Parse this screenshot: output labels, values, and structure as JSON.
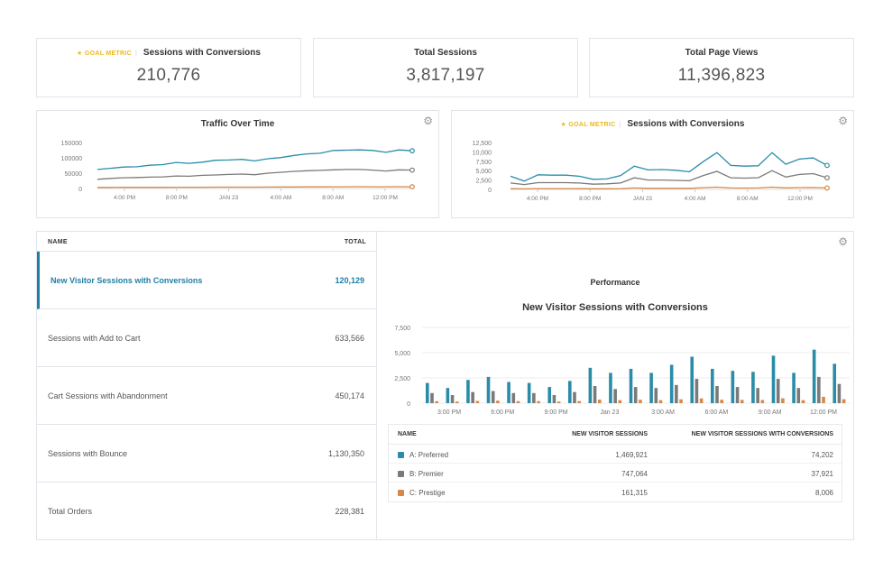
{
  "colors": {
    "teal": "#2a8ca8",
    "gray": "#7a7a7a",
    "orange": "#d4894a",
    "accent": "#1f7fa4",
    "goal": "#e8b923"
  },
  "metrics": [
    {
      "goal": "GOAL METRIC",
      "title": "Sessions with Conversions",
      "value": "210,776"
    },
    {
      "title": "Total Sessions",
      "value": "3,817,197"
    },
    {
      "title": "Total Page Views",
      "value": "11,396,823"
    }
  ],
  "traffic_chart": {
    "title": "Traffic Over Time",
    "chart_data": {
      "type": "line",
      "y_ticks": [
        "150000",
        "100000",
        "50000",
        "0"
      ],
      "ylim": [
        0,
        150000
      ],
      "x_ticks": [
        "4:00 PM",
        "8:00 PM",
        "JAN 23",
        "4:00 AM",
        "8:00 AM",
        "12:00 PM"
      ],
      "series": [
        {
          "name": "teal",
          "values": [
            62000,
            66000,
            70000,
            71000,
            76000,
            78000,
            85000,
            82000,
            86000,
            92000,
            93000,
            95000,
            90000,
            97000,
            101000,
            108000,
            113000,
            115000,
            124000,
            125000,
            126000,
            124000,
            118000,
            126000,
            123000
          ]
        },
        {
          "name": "gray",
          "values": [
            30000,
            33000,
            35000,
            36000,
            37000,
            38000,
            41000,
            40000,
            43000,
            44000,
            46000,
            47000,
            45000,
            50000,
            53000,
            56000,
            58000,
            59000,
            61000,
            62000,
            62000,
            60000,
            57000,
            61000,
            60000
          ]
        },
        {
          "name": "orange",
          "values": [
            3500,
            3600,
            3700,
            3700,
            3800,
            3900,
            4100,
            4000,
            4200,
            4300,
            4400,
            4500,
            4400,
            4700,
            4900,
            5100,
            5300,
            5400,
            5600,
            5700,
            5800,
            5700,
            5500,
            5800,
            5700
          ]
        }
      ]
    }
  },
  "conversions_chart": {
    "goal": "GOAL METRIC",
    "title": "Sessions with Conversions",
    "chart_data": {
      "type": "line",
      "y_ticks": [
        "12,500",
        "10,000",
        "7,500",
        "5,000",
        "2,500",
        "0"
      ],
      "ylim": [
        0,
        12500
      ],
      "x_ticks": [
        "4:00 PM",
        "8:00 PM",
        "JAN 23",
        "4:00 AM",
        "8:00 AM",
        "12:00 PM"
      ],
      "series": [
        {
          "name": "teal",
          "values": [
            3500,
            2200,
            3900,
            3800,
            3800,
            3500,
            2700,
            2800,
            3700,
            6200,
            5200,
            5300,
            5100,
            4700,
            7400,
            9800,
            6400,
            6200,
            6300,
            9800,
            6700,
            8100,
            8400,
            6400
          ]
        },
        {
          "name": "gray",
          "values": [
            1700,
            1300,
            1800,
            1800,
            1800,
            1700,
            1400,
            1500,
            1700,
            3100,
            2500,
            2500,
            2400,
            2300,
            3700,
            4800,
            3100,
            3000,
            3100,
            5000,
            3300,
            4000,
            4200,
            3100
          ]
        },
        {
          "name": "orange",
          "values": [
            200,
            150,
            220,
            220,
            220,
            200,
            170,
            180,
            210,
            380,
            300,
            300,
            290,
            280,
            450,
            600,
            380,
            370,
            380,
            600,
            400,
            490,
            500,
            380
          ]
        }
      ]
    }
  },
  "list": {
    "header_name": "NAME",
    "header_total": "TOTAL",
    "rows": [
      {
        "name": "New Visitor Sessions with Conversions",
        "total": "120,129"
      },
      {
        "name": "Sessions with Add to Cart",
        "total": "633,566"
      },
      {
        "name": "Cart Sessions with Abandonment",
        "total": "450,174"
      },
      {
        "name": "Sessions with Bounce",
        "total": "1,130,350"
      },
      {
        "name": "Total Orders",
        "total": "228,381"
      }
    ]
  },
  "performance": {
    "label": "Performance",
    "title": "New Visitor Sessions with Conversions",
    "chart_data": {
      "type": "bar",
      "y_ticks": [
        "7,500",
        "5,000",
        "2,500",
        "0"
      ],
      "ylim": [
        0,
        7500
      ],
      "x_ticks": [
        "3:00 PM",
        "6:00 PM",
        "9:00 PM",
        "Jan 23",
        "3:00 AM",
        "6:00 AM",
        "9:00 AM",
        "12:00 PM"
      ],
      "series": [
        {
          "name": "A: Preferred",
          "values": [
            2000,
            1500,
            2300,
            2600,
            2100,
            2000,
            1600,
            2200,
            3500,
            3000,
            3400,
            3000,
            3800,
            4600,
            3400,
            3200,
            3100,
            4700,
            3000,
            5300,
            3900
          ]
        },
        {
          "name": "B: Premier",
          "values": [
            1000,
            800,
            1100,
            1200,
            1000,
            1000,
            800,
            1100,
            1700,
            1400,
            1600,
            1500,
            1800,
            2400,
            1700,
            1600,
            1500,
            2400,
            1500,
            2600,
            1900
          ]
        },
        {
          "name": "C: Prestige",
          "values": [
            200,
            160,
            220,
            250,
            200,
            200,
            160,
            210,
            350,
            300,
            340,
            300,
            380,
            470,
            340,
            320,
            310,
            480,
            300,
            630,
            390
          ]
        }
      ]
    },
    "legend": {
      "h_name": "NAME",
      "h_col1": "NEW VISITOR SESSIONS",
      "h_col2": "NEW VISITOR SESSIONS WITH CONVERSIONS",
      "rows": [
        {
          "name": "A: Preferred",
          "col1": "1,469,921",
          "col2": "74,202",
          "color": "#2a8ca8"
        },
        {
          "name": "B: Premier",
          "col1": "747,064",
          "col2": "37,921",
          "color": "#7a7a7a"
        },
        {
          "name": "C: Prestige",
          "col1": "161,315",
          "col2": "8,006",
          "color": "#d4894a"
        }
      ]
    }
  }
}
